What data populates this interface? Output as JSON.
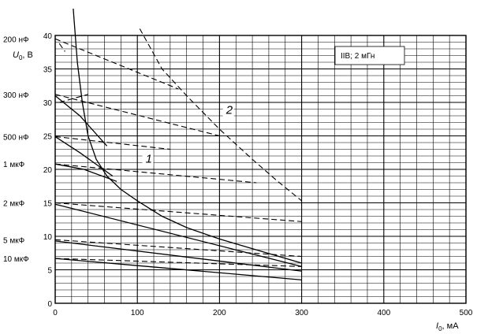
{
  "chart_data": {
    "type": "line",
    "title": "",
    "xlabel": {
      "symbol": "I",
      "sub": "0",
      "unit": ", мА"
    },
    "ylabel": {
      "symbol": "U",
      "sub": "0",
      "unit": ", В"
    },
    "xlim": [
      0,
      500
    ],
    "ylim": [
      0,
      40
    ],
    "x_ticks": [
      0,
      100,
      200,
      300,
      400,
      500
    ],
    "y_ticks": [
      0,
      5,
      10,
      15,
      20,
      25,
      30,
      35,
      40
    ],
    "grid": true,
    "legend_box": "IIB; 2 мГн",
    "curve_labels": [
      {
        "text": "1",
        "x": 110,
        "y": 21.0
      },
      {
        "text": "2",
        "x": 208,
        "y": 28.3
      }
    ],
    "capacitance_labels": [
      {
        "text": "200 нФ",
        "y": 39.5
      },
      {
        "text": "300 нФ",
        "y": 31.2
      },
      {
        "text": "500 нФ",
        "y": 24.9
      },
      {
        "text": "1 мкФ",
        "y": 20.8
      },
      {
        "text": "2 мкФ",
        "y": 15.0
      },
      {
        "text": "5 мкФ",
        "y": 9.5
      },
      {
        "text": "10 мкФ",
        "y": 6.7
      }
    ],
    "series": [
      {
        "style": "solid",
        "points": [
          [
            22,
            44.0
          ],
          [
            27,
            36
          ],
          [
            33,
            30
          ],
          [
            40,
            25
          ],
          [
            50,
            21.5
          ],
          [
            63,
            19.0
          ],
          [
            80,
            17.0
          ],
          [
            100,
            15.3
          ],
          [
            130,
            13.0
          ],
          [
            160,
            11.3
          ],
          [
            200,
            9.6
          ],
          [
            250,
            7.8
          ],
          [
            300,
            6.0
          ]
        ]
      },
      {
        "style": "dashed",
        "points": [
          [
            103,
            41.0
          ],
          [
            130,
            35.0
          ],
          [
            160,
            31.0
          ],
          [
            200,
            26.0
          ],
          [
            240,
            21.5
          ],
          [
            270,
            18.3
          ],
          [
            300,
            15.3
          ]
        ]
      },
      {
        "style": "dashed",
        "points": [
          [
            0,
            39.5
          ],
          [
            150,
            32.0
          ]
        ]
      },
      {
        "style": "dashed",
        "points": [
          [
            5,
            38.8
          ],
          [
            12,
            37.6
          ]
        ]
      },
      {
        "style": "dashed",
        "points": [
          [
            0,
            31.2
          ],
          [
            200,
            25.0
          ]
        ]
      },
      {
        "style": "dashed",
        "points": [
          [
            5,
            30.0
          ],
          [
            40,
            31.2
          ]
        ]
      },
      {
        "style": "solid",
        "points": [
          [
            0,
            31.0
          ],
          [
            30,
            28.0
          ],
          [
            63,
            23.5
          ]
        ]
      },
      {
        "style": "dashed",
        "points": [
          [
            0,
            24.9
          ],
          [
            140,
            23.0
          ]
        ]
      },
      {
        "style": "solid",
        "points": [
          [
            0,
            24.9
          ],
          [
            30,
            22.5
          ],
          [
            70,
            19.0
          ]
        ]
      },
      {
        "style": "dashed",
        "points": [
          [
            0,
            20.8
          ],
          [
            245,
            18.0
          ]
        ]
      },
      {
        "style": "solid",
        "points": [
          [
            0,
            20.8
          ],
          [
            35,
            20.0
          ],
          [
            75,
            18.2
          ]
        ]
      },
      {
        "style": "dashed",
        "points": [
          [
            0,
            15.0
          ],
          [
            300,
            12.2
          ]
        ]
      },
      {
        "style": "solid",
        "points": [
          [
            0,
            14.8
          ],
          [
            300,
            5.5
          ]
        ]
      },
      {
        "style": "dashed",
        "points": [
          [
            0,
            9.5
          ],
          [
            300,
            7.0
          ]
        ]
      },
      {
        "style": "solid",
        "points": [
          [
            0,
            9.3
          ],
          [
            300,
            4.8
          ]
        ]
      },
      {
        "style": "dashed",
        "points": [
          [
            0,
            6.7
          ],
          [
            300,
            5.5
          ]
        ]
      },
      {
        "style": "solid",
        "points": [
          [
            0,
            6.7
          ],
          [
            300,
            3.5
          ]
        ]
      }
    ]
  }
}
